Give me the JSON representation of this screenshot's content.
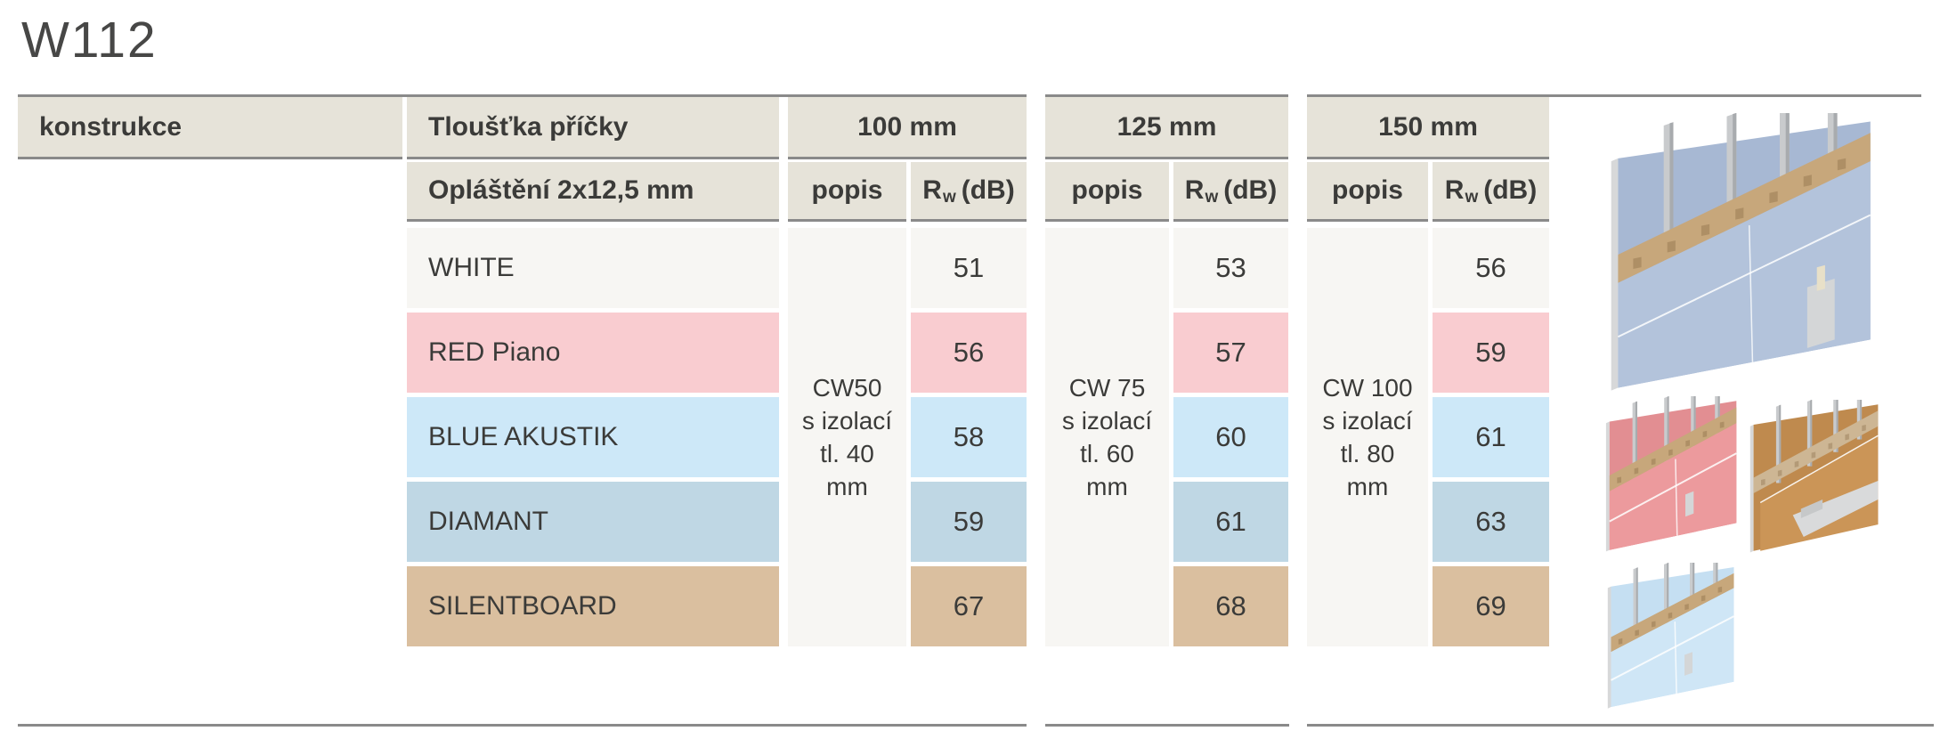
{
  "page": {
    "title": "W112"
  },
  "table": {
    "corner_header": "konstrukce",
    "thickness_header": "Tloušťka příčky",
    "cladding_header": "Opláštění 2x12,5 mm",
    "popis_header": "popis",
    "rw_header": {
      "symbol": "R",
      "subscript": "w",
      "unit": "(dB)"
    },
    "thickness_groups": [
      {
        "label": "100 mm",
        "stud_description": "CW50\ns izolací\ntl. 40\nmm",
        "rw_values": [
          51,
          56,
          58,
          59,
          67
        ]
      },
      {
        "label": "125 mm",
        "stud_description": "CW 75\ns izolací\ntl. 60\nmm",
        "rw_values": [
          53,
          57,
          60,
          61,
          68
        ]
      },
      {
        "label": "150 mm",
        "stud_description": "CW 100\ns izolací\ntl. 80\nmm",
        "rw_values": [
          56,
          59,
          61,
          63,
          69
        ]
      }
    ],
    "cladding_rows": [
      {
        "label": "WHITE",
        "color": "#f7f6f3"
      },
      {
        "label": "RED Piano",
        "color": "#f9ccd0"
      },
      {
        "label": "BLUE AKUSTIK",
        "color": "#cde8f8"
      },
      {
        "label": "DIAMANT",
        "color": "#bfd7e4"
      },
      {
        "label": "SILENTBOARD",
        "color": "#dabf9f"
      }
    ]
  },
  "colors": {
    "header_bg": "#e6e3d9",
    "rule": "#8a8a8a",
    "text": "#3b3b39",
    "title_text": "#474746",
    "popis_bg": "#f7f6f3"
  },
  "illustrations": [
    {
      "name": "wall-render-large-blue",
      "back": "#a7b8d3",
      "front": "#b3c3db",
      "insulation": "#c7a77b",
      "stud": "#c9cbcd",
      "variant": "large"
    },
    {
      "name": "wall-render-red-piano",
      "back": "#e28e92",
      "front": "#ec9a9d",
      "insulation": "#c7a77b",
      "stud": "#c9cbcd",
      "variant": "small"
    },
    {
      "name": "wall-render-silentboard-brown",
      "back": "#bf8a4e",
      "front": "#cb9557",
      "insulation": "#cdb694",
      "stud": "#c9cbcd",
      "variant": "layered"
    },
    {
      "name": "wall-render-blue-akustik",
      "back": "#c5dff2",
      "front": "#cfe6f6",
      "insulation": "#c7a77b",
      "stud": "#c9cbcd",
      "variant": "small"
    }
  ]
}
